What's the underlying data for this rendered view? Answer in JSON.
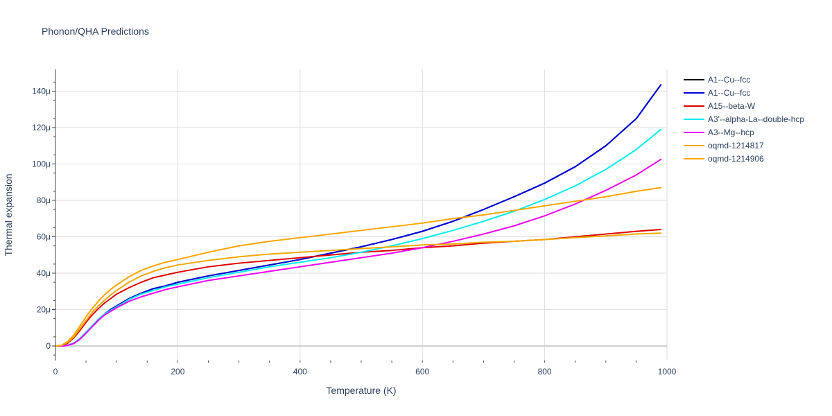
{
  "chart_data": {
    "type": "line",
    "title": "Phonon/QHA Predictions",
    "xlabel": "Temperature (K)",
    "ylabel": "Thermal expansion",
    "xlim": [
      0,
      1000
    ],
    "ylim": [
      -8e-06,
      0.000152
    ],
    "x_ticks": [
      {
        "value": 0,
        "label": "0"
      },
      {
        "value": 200,
        "label": "200"
      },
      {
        "value": 400,
        "label": "400"
      },
      {
        "value": 600,
        "label": "600"
      },
      {
        "value": 800,
        "label": "800"
      },
      {
        "value": 1000,
        "label": "1000"
      }
    ],
    "y_ticks": [
      {
        "value": 0,
        "label": "0"
      },
      {
        "value": 2e-05,
        "label": "20μ"
      },
      {
        "value": 4e-05,
        "label": "40μ"
      },
      {
        "value": 6e-05,
        "label": "60μ"
      },
      {
        "value": 8e-05,
        "label": "80μ"
      },
      {
        "value": 0.0001,
        "label": "100μ"
      },
      {
        "value": 0.00012,
        "label": "120μ"
      },
      {
        "value": 0.00014,
        "label": "140μ"
      }
    ],
    "grid": true,
    "legend_position": "top-right",
    "series": [
      {
        "name": "A1--Cu--fcc",
        "color": "#000000",
        "x": [
          0,
          10,
          20,
          30,
          40,
          50,
          60,
          70,
          80,
          90,
          100,
          120,
          140,
          160,
          180,
          200,
          250,
          300,
          350,
          400,
          450,
          500,
          550,
          600,
          650,
          700,
          750,
          800,
          850,
          900,
          950,
          990
        ],
        "y": [
          0,
          0,
          4e-07,
          1.5e-06,
          4e-06,
          7.5e-06,
          1.1e-05,
          1.45e-05,
          1.75e-05,
          2e-05,
          2.2e-05,
          2.6e-05,
          2.9e-05,
          3.15e-05,
          3.3e-05,
          3.5e-05,
          3.85e-05,
          4.15e-05,
          4.45e-05,
          4.75e-05,
          5.1e-05,
          5.45e-05,
          5.85e-05,
          6.3e-05,
          6.85e-05,
          7.5e-05,
          8.2e-05,
          8.95e-05,
          9.85e-05,
          0.00011,
          0.000125,
          0.0001435
        ]
      },
      {
        "name": "A1--Cu--fcc",
        "color": "#0000dd",
        "x": [
          0,
          10,
          20,
          30,
          40,
          50,
          60,
          70,
          80,
          90,
          100,
          120,
          140,
          160,
          180,
          200,
          250,
          300,
          350,
          400,
          450,
          500,
          550,
          600,
          650,
          700,
          750,
          800,
          850,
          900,
          950,
          990
        ],
        "y": [
          0,
          0,
          4e-07,
          1.5e-06,
          4e-06,
          7.5e-06,
          1.1e-05,
          1.45e-05,
          1.75e-05,
          2e-05,
          2.2e-05,
          2.6e-05,
          2.9e-05,
          3.15e-05,
          3.3e-05,
          3.5e-05,
          3.85e-05,
          4.15e-05,
          4.45e-05,
          4.75e-05,
          5.1e-05,
          5.45e-05,
          5.85e-05,
          6.3e-05,
          6.85e-05,
          7.5e-05,
          8.2e-05,
          8.95e-05,
          9.85e-05,
          0.00011,
          0.000125,
          0.0001435
        ]
      },
      {
        "name": "A15--beta-W",
        "color": "#dd0000",
        "x": [
          0,
          10,
          20,
          30,
          40,
          50,
          60,
          70,
          80,
          90,
          100,
          120,
          140,
          160,
          180,
          200,
          250,
          300,
          350,
          400,
          450,
          500,
          550,
          600,
          650,
          700,
          750,
          800,
          850,
          900,
          950,
          990
        ],
        "y": [
          0,
          2e-07,
          1.5e-06,
          4.5e-06,
          8.5e-06,
          1.3e-05,
          1.7e-05,
          2.05e-05,
          2.35e-05,
          2.6e-05,
          2.85e-05,
          3.2e-05,
          3.5e-05,
          3.75e-05,
          3.9e-05,
          4.05e-05,
          4.35e-05,
          4.55e-05,
          4.7e-05,
          4.85e-05,
          5e-05,
          5.15e-05,
          5.25e-05,
          5.4e-05,
          5.5e-05,
          5.65e-05,
          5.75e-05,
          5.85e-05,
          6e-05,
          6.15e-05,
          6.3e-05,
          6.4e-05
        ]
      },
      {
        "name": "A3'--alpha-La--double-hcp",
        "color": "#00eeee",
        "x": [
          0,
          10,
          20,
          30,
          40,
          50,
          60,
          70,
          80,
          90,
          100,
          120,
          140,
          160,
          180,
          200,
          250,
          300,
          350,
          400,
          450,
          500,
          550,
          600,
          650,
          700,
          750,
          800,
          850,
          900,
          950,
          990
        ],
        "y": [
          0,
          0,
          4e-07,
          1.5e-06,
          4e-06,
          7.5e-06,
          1.1e-05,
          1.45e-05,
          1.75e-05,
          1.95e-05,
          2.15e-05,
          2.55e-05,
          2.85e-05,
          3.05e-05,
          3.25e-05,
          3.4e-05,
          3.75e-05,
          4.05e-05,
          4.35e-05,
          4.6e-05,
          4.85e-05,
          5.15e-05,
          5.5e-05,
          5.9e-05,
          6.35e-05,
          6.85e-05,
          7.4e-05,
          8.05e-05,
          8.8e-05,
          9.7e-05,
          0.000108,
          0.000119
        ]
      },
      {
        "name": "A3--Mg--hcp",
        "color": "#ee00ee",
        "x": [
          0,
          10,
          20,
          30,
          40,
          50,
          60,
          70,
          80,
          90,
          100,
          120,
          140,
          160,
          180,
          200,
          250,
          300,
          350,
          400,
          450,
          500,
          550,
          600,
          650,
          700,
          750,
          800,
          850,
          900,
          950,
          990
        ],
        "y": [
          0,
          0,
          3e-07,
          1.3e-06,
          3.7e-06,
          7e-06,
          1.05e-05,
          1.4e-05,
          1.7e-05,
          1.9e-05,
          2.1e-05,
          2.45e-05,
          2.7e-05,
          2.9e-05,
          3.1e-05,
          3.25e-05,
          3.6e-05,
          3.85e-05,
          4.1e-05,
          4.35e-05,
          4.6e-05,
          4.85e-05,
          5.1e-05,
          5.4e-05,
          5.75e-05,
          6.15e-05,
          6.6e-05,
          7.15e-05,
          7.8e-05,
          8.55e-05,
          9.4e-05,
          0.0001025
        ]
      },
      {
        "name": "oqmd-1214817",
        "color": "#f0a800",
        "x": [
          0,
          10,
          20,
          30,
          40,
          50,
          60,
          70,
          80,
          90,
          100,
          120,
          140,
          160,
          180,
          200,
          250,
          300,
          350,
          400,
          450,
          500,
          550,
          600,
          650,
          700,
          750,
          800,
          850,
          900,
          950,
          990
        ],
        "y": [
          0,
          3e-07,
          2e-06,
          5e-06,
          9.5e-06,
          1.4e-05,
          1.85e-05,
          2.2e-05,
          2.5e-05,
          2.8e-05,
          3.05e-05,
          3.5e-05,
          3.85e-05,
          4.1e-05,
          4.3e-05,
          4.45e-05,
          4.7e-05,
          4.9e-05,
          5.05e-05,
          5.15e-05,
          5.25e-05,
          5.35e-05,
          5.45e-05,
          5.55e-05,
          5.6e-05,
          5.7e-05,
          5.75e-05,
          5.85e-05,
          5.95e-05,
          6.05e-05,
          6.15e-05,
          6.2e-05
        ]
      },
      {
        "name": "oqmd-1214906",
        "color": "#ffa500",
        "x": [
          0,
          10,
          20,
          30,
          40,
          50,
          60,
          70,
          80,
          90,
          100,
          120,
          140,
          160,
          180,
          200,
          250,
          300,
          350,
          400,
          450,
          500,
          550,
          600,
          650,
          700,
          750,
          800,
          850,
          900,
          950,
          990
        ],
        "y": [
          0,
          5e-07,
          2.5e-06,
          6e-06,
          1.1e-05,
          1.6e-05,
          2.05e-05,
          2.45e-05,
          2.8e-05,
          3.1e-05,
          3.35e-05,
          3.8e-05,
          4.15e-05,
          4.4e-05,
          4.6e-05,
          4.75e-05,
          5.15e-05,
          5.5e-05,
          5.75e-05,
          5.95e-05,
          6.15e-05,
          6.35e-05,
          6.55e-05,
          6.75e-05,
          7e-05,
          7.2e-05,
          7.45e-05,
          7.7e-05,
          7.95e-05,
          8.2e-05,
          8.5e-05,
          8.7e-05
        ]
      }
    ]
  }
}
